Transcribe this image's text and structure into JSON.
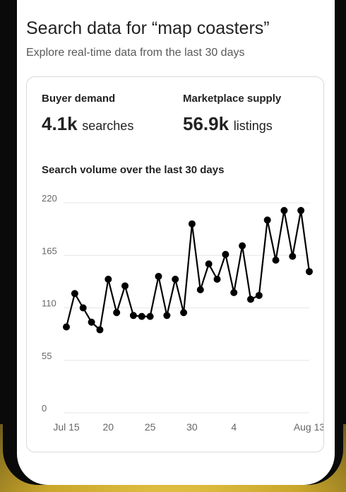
{
  "page": {
    "title": "Search data for “map coasters”",
    "subtitle": "Explore real-time data from the last 30 days"
  },
  "stats": {
    "demand": {
      "label": "Buyer demand",
      "value": "4.1k",
      "unit": "searches"
    },
    "supply": {
      "label": "Marketplace supply",
      "value": "56.9k",
      "unit": "listings"
    }
  },
  "colors": {
    "line": "#000000",
    "grid": "#e6e6e6",
    "tick_text": "#666666",
    "card_border": "#d9d9d9"
  },
  "chart_data": {
    "type": "line",
    "title": "Search volume over the last 30 days",
    "xlabel": "",
    "ylabel": "",
    "ylim": [
      0,
      220
    ],
    "yticks": [
      0,
      55,
      110,
      165,
      220
    ],
    "grid": true,
    "x_start": "Jul 15",
    "xtick_labels": [
      {
        "day": 0,
        "label": "Jul 15"
      },
      {
        "day": 5,
        "label": "20"
      },
      {
        "day": 10,
        "label": "25"
      },
      {
        "day": 15,
        "label": "30"
      },
      {
        "day": 20,
        "label": "4"
      },
      {
        "day": 29,
        "label": "Aug 13"
      }
    ],
    "values": [
      90,
      125,
      110,
      95,
      87,
      140,
      105,
      133,
      102,
      101,
      101,
      143,
      102,
      140,
      105,
      198,
      129,
      156,
      140,
      166,
      126,
      175,
      119,
      123,
      202,
      160,
      212,
      164,
      212,
      148
    ]
  }
}
